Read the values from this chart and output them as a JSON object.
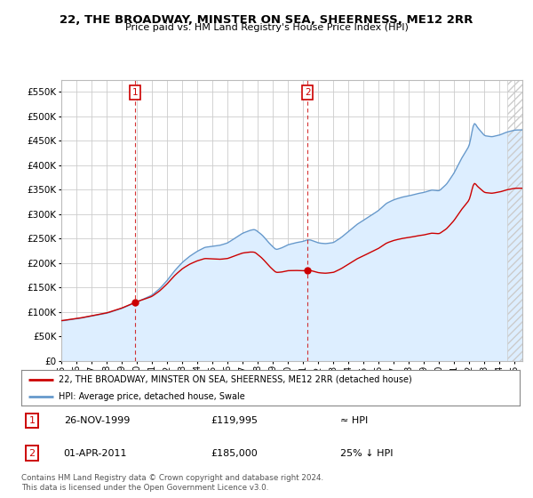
{
  "title": "22, THE BROADWAY, MINSTER ON SEA, SHEERNESS, ME12 2RR",
  "subtitle": "Price paid vs. HM Land Registry's House Price Index (HPI)",
  "legend_line1": "22, THE BROADWAY, MINSTER ON SEA, SHEERNESS, ME12 2RR (detached house)",
  "legend_line2": "HPI: Average price, detached house, Swale",
  "annotation1_date": "26-NOV-1999",
  "annotation1_price": "£119,995",
  "annotation1_hpi": "≈ HPI",
  "annotation2_date": "01-APR-2011",
  "annotation2_price": "£185,000",
  "annotation2_hpi": "25% ↓ HPI",
  "footer": "Contains HM Land Registry data © Crown copyright and database right 2024.\nThis data is licensed under the Open Government Licence v3.0.",
  "price_color": "#cc0000",
  "hpi_color": "#6699cc",
  "hpi_fill_color": "#ddeeff",
  "background_color": "#ffffff",
  "grid_color": "#cccccc",
  "annotation_box_color": "#cc0000",
  "sale1_year": 1999,
  "sale1_month": 11,
  "sale1_y": 119995,
  "sale2_year": 2011,
  "sale2_month": 4,
  "sale2_y": 185000,
  "ylim": [
    0,
    575000
  ],
  "yticks": [
    0,
    50000,
    100000,
    150000,
    200000,
    250000,
    300000,
    350000,
    400000,
    450000,
    500000,
    550000
  ],
  "xmin": 1995.0,
  "xmax": 2025.5
}
